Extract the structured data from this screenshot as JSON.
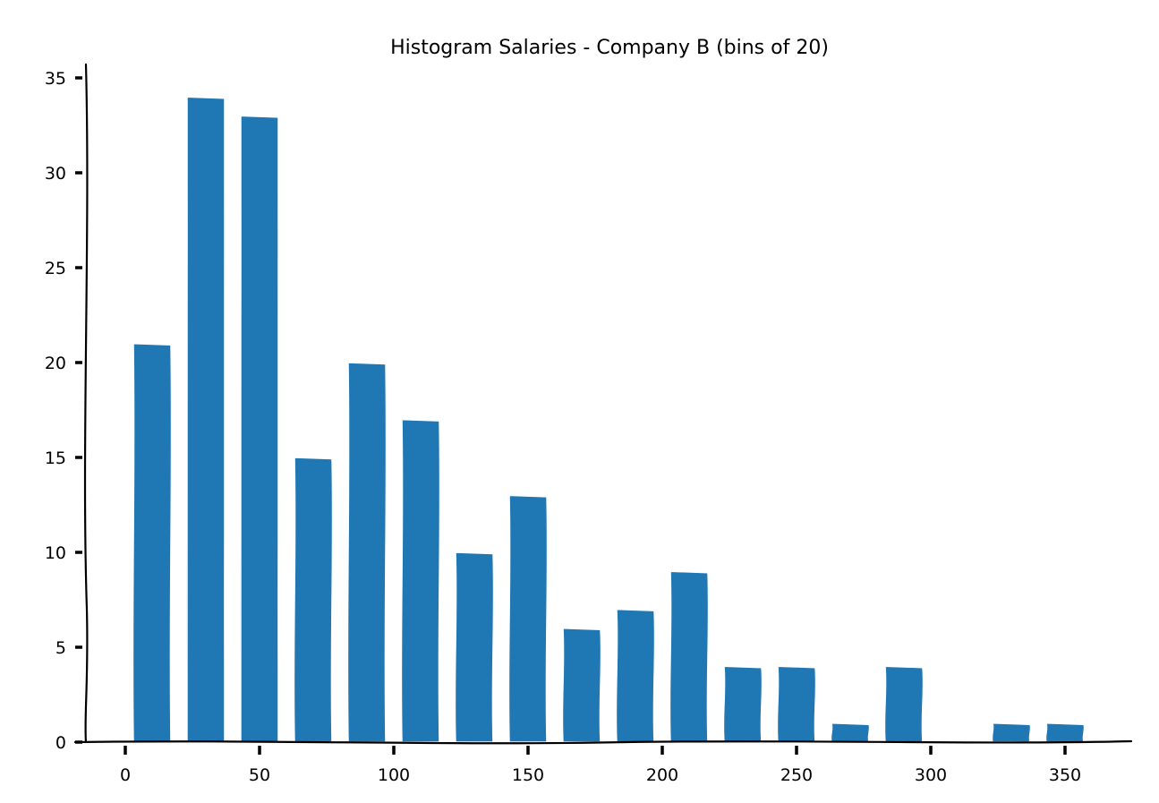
{
  "chart_data": {
    "type": "bar",
    "title": "Histogram Salaries - Company B (bins of 20)",
    "xlabel": "",
    "ylabel": "",
    "bin_width": 20,
    "bins": [
      {
        "center": 10,
        "value": 21
      },
      {
        "center": 30,
        "value": 34
      },
      {
        "center": 50,
        "value": 33
      },
      {
        "center": 70,
        "value": 15
      },
      {
        "center": 90,
        "value": 20
      },
      {
        "center": 110,
        "value": 17
      },
      {
        "center": 130,
        "value": 10
      },
      {
        "center": 150,
        "value": 13
      },
      {
        "center": 170,
        "value": 6
      },
      {
        "center": 190,
        "value": 7
      },
      {
        "center": 210,
        "value": 9
      },
      {
        "center": 230,
        "value": 4
      },
      {
        "center": 250,
        "value": 4
      },
      {
        "center": 270,
        "value": 1
      },
      {
        "center": 290,
        "value": 4
      },
      {
        "center": 310,
        "value": 0
      },
      {
        "center": 330,
        "value": 1
      },
      {
        "center": 350,
        "value": 1
      }
    ],
    "xlim": [
      -15,
      375
    ],
    "ylim": [
      0,
      36
    ],
    "x_ticks": [
      0,
      50,
      100,
      150,
      200,
      250,
      300,
      350
    ],
    "y_ticks": [
      0,
      5,
      10,
      15,
      20,
      25,
      30,
      35
    ],
    "bar_color": "#1f77b4",
    "grid": false,
    "legend": "none"
  }
}
